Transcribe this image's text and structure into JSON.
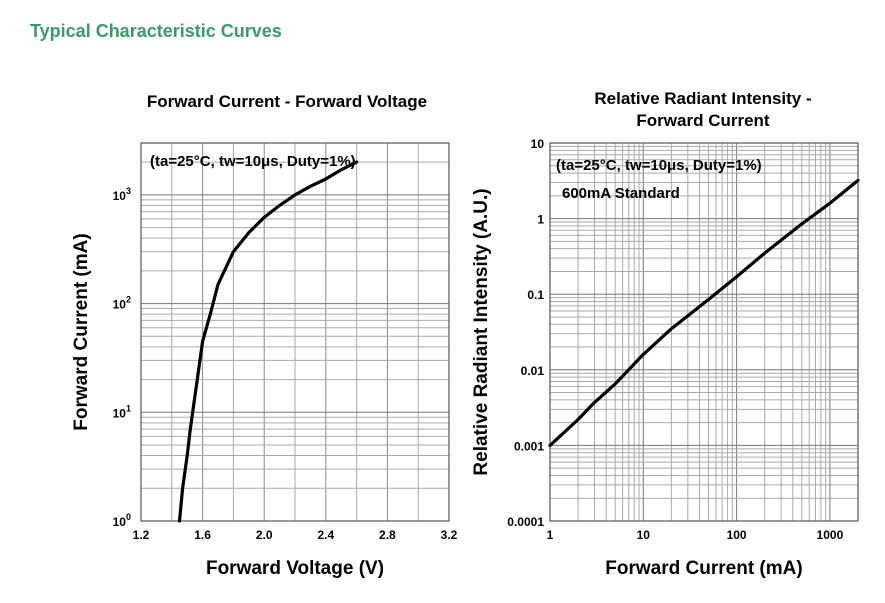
{
  "page": {
    "section_title": "Typical Characteristic Curves",
    "title_color": "#3a9a6a"
  },
  "chart_data": [
    {
      "type": "line",
      "title": "Forward Current - Forward Voltage",
      "xlabel": "Forward Voltage (V)",
      "ylabel": "Forward Current (mA)",
      "annotation": "(ta=25°C, tw=10μs, Duty=1%)",
      "x_scale": "linear",
      "y_scale": "log",
      "xlim": [
        1.2,
        3.2
      ],
      "ylim": [
        1,
        3000
      ],
      "x_ticks": [
        1.2,
        1.6,
        2.0,
        2.4,
        2.8,
        3.2
      ],
      "x_tick_labels": [
        "1.2",
        "1.6",
        "2.0",
        "2.4",
        "2.8",
        "3.2"
      ],
      "y_ticks": [
        1,
        10,
        100,
        1000
      ],
      "y_tick_labels": [
        {
          "base": "10",
          "exp": "0"
        },
        {
          "base": "10",
          "exp": "1"
        },
        {
          "base": "10",
          "exp": "2"
        },
        {
          "base": "10",
          "exp": "3"
        }
      ],
      "grid": true,
      "series": [
        {
          "x": [
            1.45,
            1.47,
            1.5,
            1.52,
            1.55,
            1.58,
            1.6,
            1.65,
            1.7,
            1.8,
            1.9,
            2.0,
            2.1,
            2.2,
            2.3,
            2.4,
            2.5,
            2.6
          ],
          "y": [
            1,
            2,
            4,
            7,
            14,
            28,
            45,
            80,
            150,
            300,
            450,
            620,
            800,
            1000,
            1200,
            1400,
            1700,
            2000
          ]
        }
      ]
    },
    {
      "type": "line",
      "title": "Relative Radiant Intensity - Forward Current",
      "title_lines": [
        "Relative Radiant Intensity -",
        "Forward Current"
      ],
      "xlabel": "Forward Current (mA)",
      "ylabel": "Relative Radiant Intensity (A.U.)",
      "annotation": "(ta=25°C, tw=10μs, Duty=1%)",
      "annotation2": "600mA Standard",
      "x_scale": "log",
      "y_scale": "log",
      "xlim": [
        1,
        2000
      ],
      "ylim": [
        0.0001,
        10
      ],
      "x_ticks": [
        1,
        10,
        100,
        1000
      ],
      "x_tick_labels": [
        "1",
        "10",
        "100",
        "1000"
      ],
      "y_ticks": [
        0.0001,
        0.001,
        0.01,
        0.1,
        1,
        10
      ],
      "y_tick_labels": [
        "0.0001",
        "0.001",
        "0.01",
        "0.1",
        "1",
        "10"
      ],
      "grid": true,
      "series": [
        {
          "x": [
            1,
            2,
            3,
            5,
            10,
            20,
            50,
            100,
            200,
            500,
            1000,
            2000
          ],
          "y": [
            0.001,
            0.0022,
            0.0037,
            0.0065,
            0.016,
            0.035,
            0.085,
            0.17,
            0.35,
            0.85,
            1.6,
            3.2
          ]
        }
      ]
    }
  ]
}
